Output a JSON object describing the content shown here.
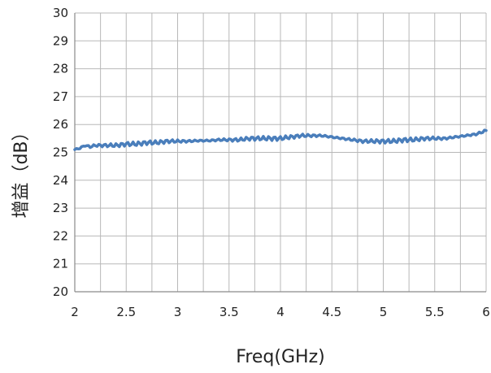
{
  "chart_data": {
    "type": "line",
    "title": "",
    "xlabel": "Freq(GHz)",
    "ylabel": "增益（dB）",
    "xlim": [
      2,
      6
    ],
    "ylim": [
      20,
      30
    ],
    "xticks": [
      "2",
      "2.5",
      "3",
      "3.5",
      "4",
      "4.5",
      "5",
      "5.5",
      "6"
    ],
    "yticks": [
      "20",
      "21",
      "22",
      "23",
      "24",
      "25",
      "26",
      "27",
      "28",
      "29",
      "30"
    ],
    "grid": true,
    "line_color": "#4a7ebb",
    "series": [
      {
        "x": [
          2.0,
          2.05,
          2.1,
          2.15,
          2.2,
          2.3,
          2.4,
          2.5,
          2.6,
          2.7,
          2.8,
          2.9,
          3.0,
          3.1,
          3.2,
          3.3,
          3.4,
          3.5,
          3.6,
          3.7,
          3.8,
          3.9,
          4.0,
          4.1,
          4.2,
          4.3,
          4.4,
          4.5,
          4.6,
          4.7,
          4.8,
          4.9,
          5.0,
          5.1,
          5.2,
          5.3,
          5.4,
          5.5,
          5.6,
          5.7,
          5.8,
          5.9,
          6.0
        ],
        "values": [
          25.1,
          25.15,
          25.25,
          25.2,
          25.25,
          25.25,
          25.25,
          25.3,
          25.3,
          25.35,
          25.35,
          25.4,
          25.4,
          25.4,
          25.42,
          25.42,
          25.45,
          25.45,
          25.45,
          25.5,
          25.5,
          25.5,
          25.5,
          25.55,
          25.6,
          25.6,
          25.6,
          25.55,
          25.5,
          25.45,
          25.4,
          25.4,
          25.4,
          25.4,
          25.45,
          25.45,
          25.5,
          25.5,
          25.5,
          25.55,
          25.6,
          25.65,
          25.78
        ]
      }
    ]
  }
}
